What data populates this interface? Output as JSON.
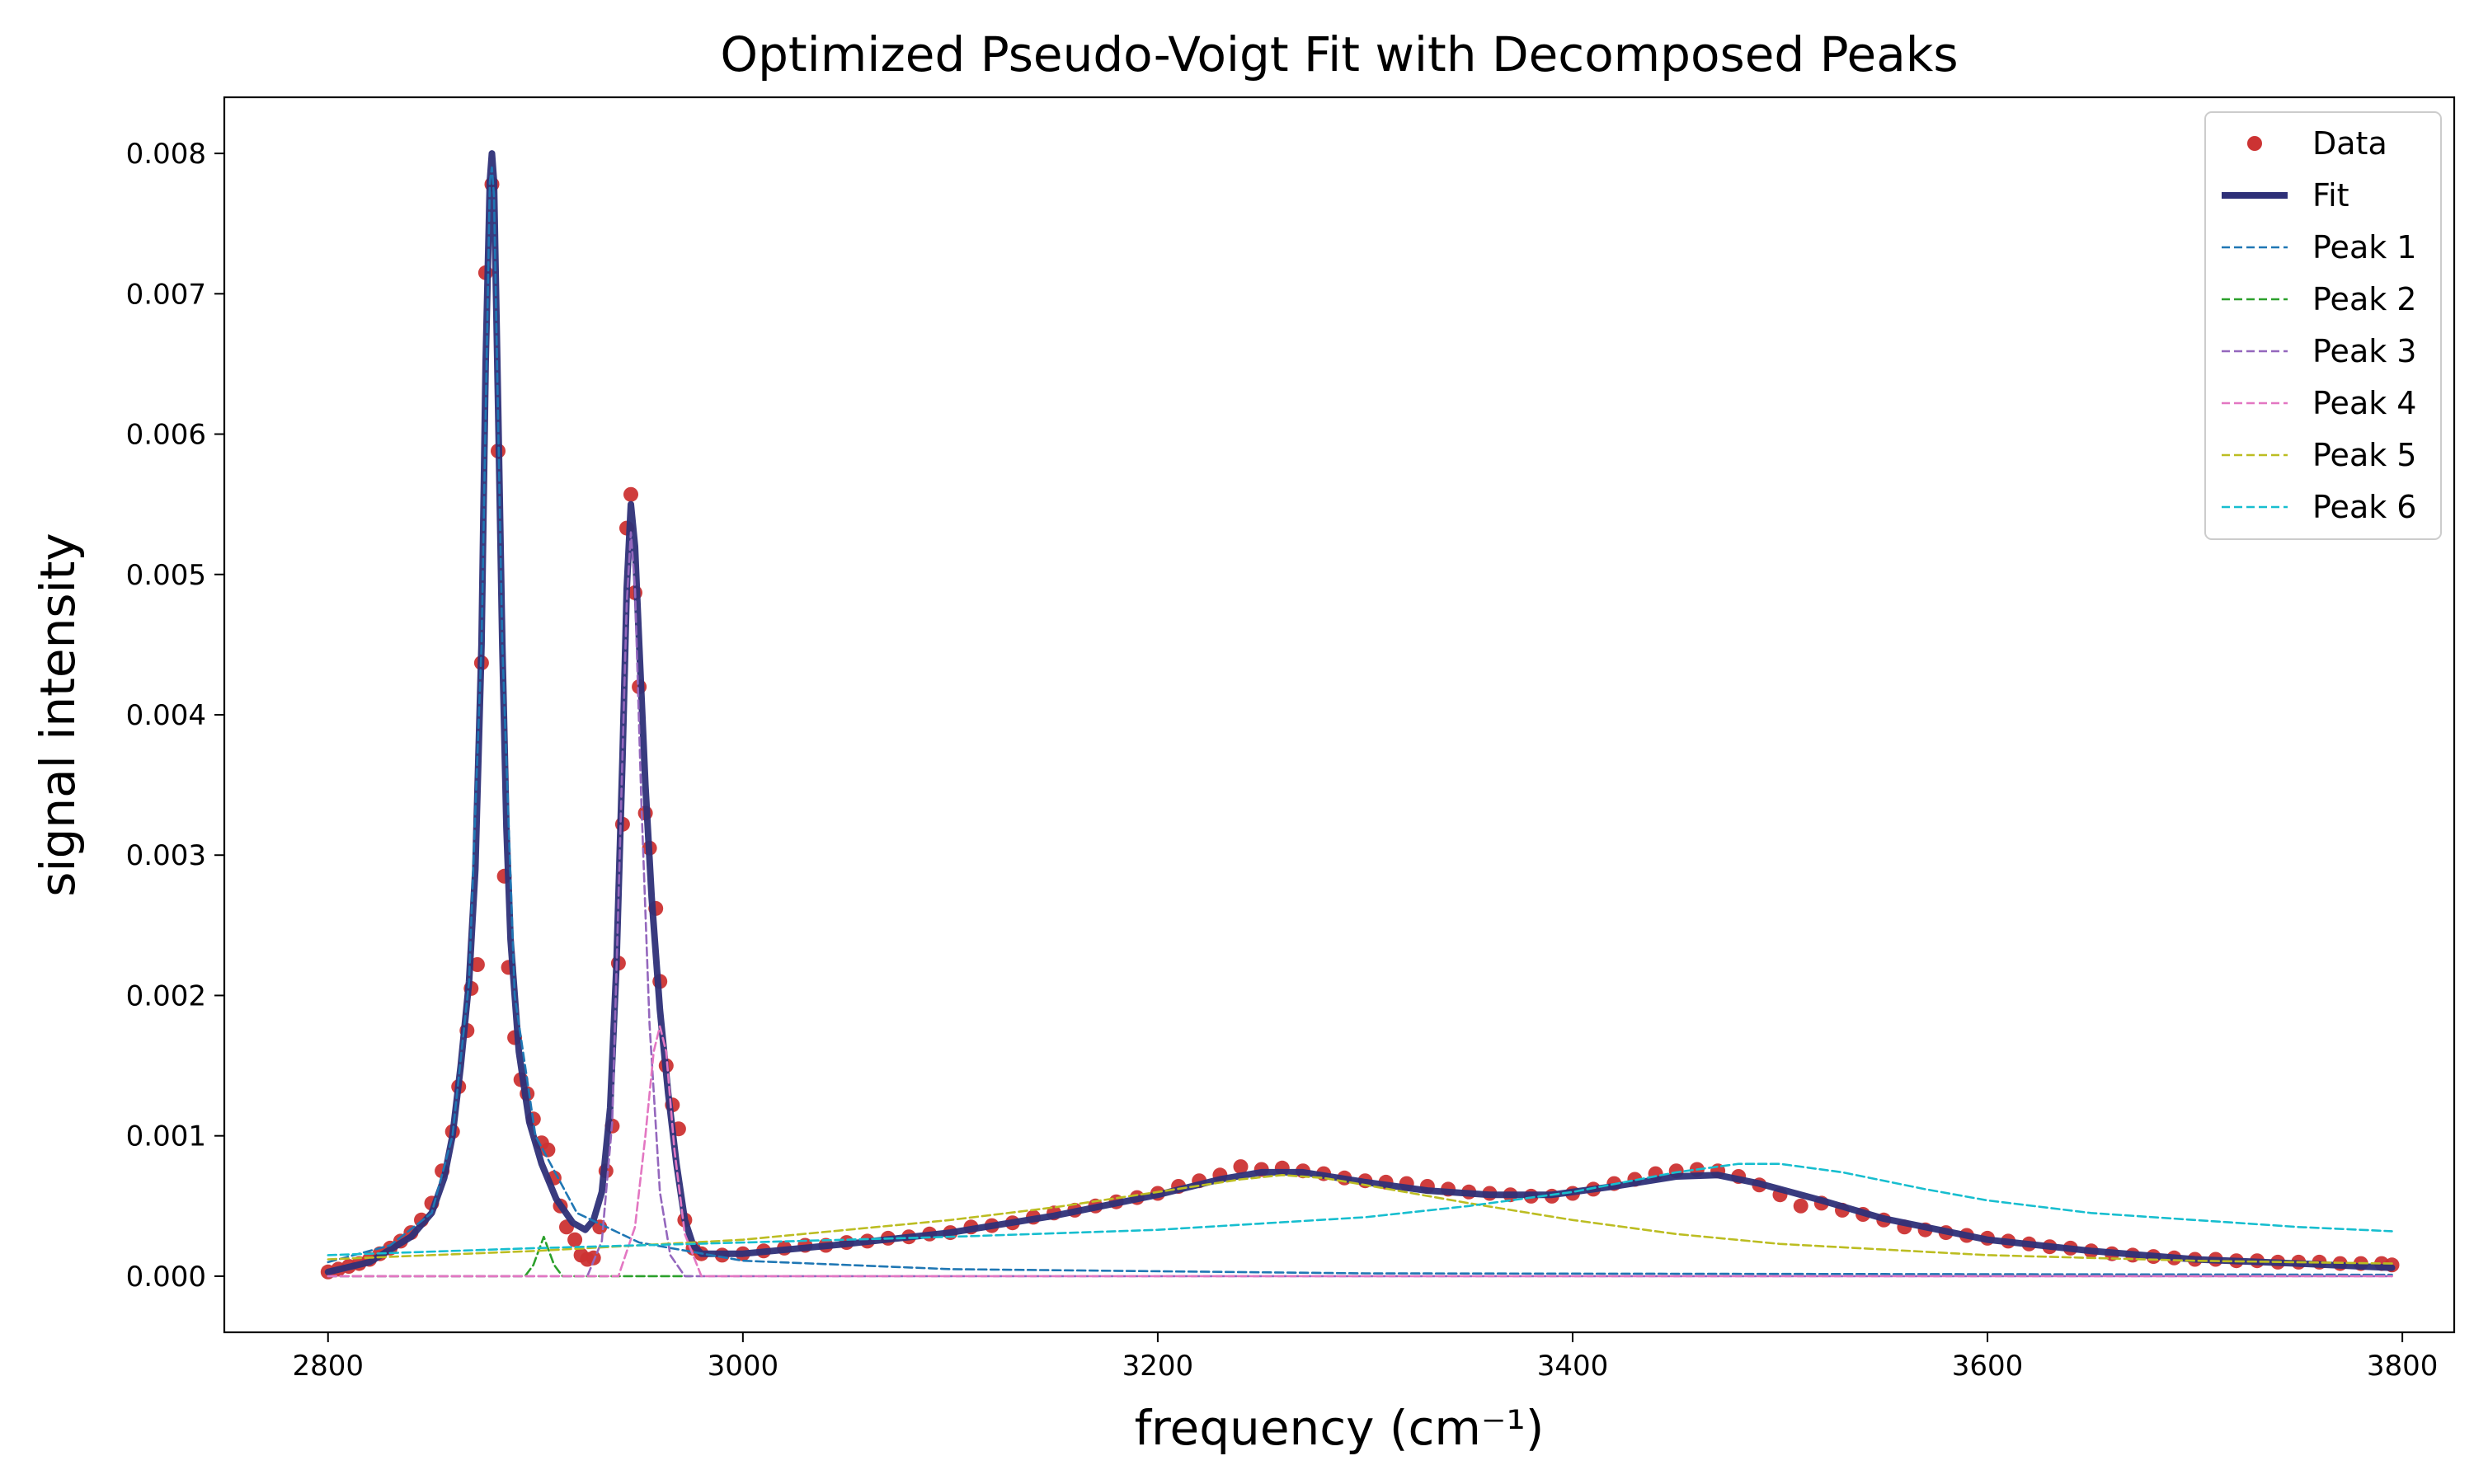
{
  "chart_data": {
    "type": "line",
    "title": "Optimized Pseudo-Voigt Fit with Decomposed Peaks",
    "xlabel": "frequency (cm⁻¹)",
    "ylabel": "signal intensity",
    "xlim": [
      2750,
      3825
    ],
    "ylim": [
      -0.0004,
      0.0084
    ],
    "x_ticks": [
      2800,
      3000,
      3200,
      3400,
      3600,
      3800
    ],
    "y_ticks": [
      0.0,
      0.001,
      0.002,
      0.003,
      0.004,
      0.005,
      0.006,
      0.007,
      0.008
    ],
    "y_tick_labels": [
      "0.000",
      "0.001",
      "0.002",
      "0.003",
      "0.004",
      "0.005",
      "0.006",
      "0.007",
      "0.008"
    ],
    "grid": false,
    "legend_position": "top-right",
    "series": [
      {
        "name": "Data",
        "kind": "scatter",
        "color": "#cc3333",
        "points": [
          [
            2800,
            3e-05
          ],
          [
            2805,
            5e-05
          ],
          [
            2810,
            7e-05
          ],
          [
            2815,
            9e-05
          ],
          [
            2820,
            0.00012
          ],
          [
            2825,
            0.00016
          ],
          [
            2830,
            0.0002
          ],
          [
            2835,
            0.00025
          ],
          [
            2840,
            0.00031
          ],
          [
            2845,
            0.0004
          ],
          [
            2850,
            0.00052
          ],
          [
            2855,
            0.00075
          ],
          [
            2860,
            0.00103
          ],
          [
            2863,
            0.00135
          ],
          [
            2867,
            0.00175
          ],
          [
            2869,
            0.00205
          ],
          [
            2872,
            0.00222
          ],
          [
            2874,
            0.00437
          ],
          [
            2876,
            0.00715
          ],
          [
            2879,
            0.00778
          ],
          [
            2882,
            0.00588
          ],
          [
            2885,
            0.00285
          ],
          [
            2887,
            0.0022
          ],
          [
            2890,
            0.0017
          ],
          [
            2893,
            0.0014
          ],
          [
            2896,
            0.0013
          ],
          [
            2899,
            0.00112
          ],
          [
            2903,
            0.00095
          ],
          [
            2906,
            0.0009
          ],
          [
            2909,
            0.0007
          ],
          [
            2912,
            0.0005
          ],
          [
            2915,
            0.00035
          ],
          [
            2919,
            0.00026
          ],
          [
            2922,
            0.00015
          ],
          [
            2925,
            0.00012
          ],
          [
            2928,
            0.00013
          ],
          [
            2931,
            0.00035
          ],
          [
            2934,
            0.00075
          ],
          [
            2937,
            0.00107
          ],
          [
            2940,
            0.00223
          ],
          [
            2942,
            0.00322
          ],
          [
            2944,
            0.00533
          ],
          [
            2946,
            0.00557
          ],
          [
            2948,
            0.00487
          ],
          [
            2950,
            0.0042
          ],
          [
            2953,
            0.0033
          ],
          [
            2955,
            0.00305
          ],
          [
            2958,
            0.00262
          ],
          [
            2960,
            0.0021
          ],
          [
            2963,
            0.0015
          ],
          [
            2966,
            0.00122
          ],
          [
            2969,
            0.00105
          ],
          [
            2972,
            0.0004
          ],
          [
            2976,
            0.0002
          ],
          [
            2980,
            0.00016
          ],
          [
            2990,
            0.00015
          ],
          [
            3000,
            0.00016
          ],
          [
            3010,
            0.00018
          ],
          [
            3020,
            0.0002
          ],
          [
            3030,
            0.00022
          ],
          [
            3040,
            0.00022
          ],
          [
            3050,
            0.00024
          ],
          [
            3060,
            0.00025
          ],
          [
            3070,
            0.00027
          ],
          [
            3080,
            0.00028
          ],
          [
            3090,
            0.0003
          ],
          [
            3100,
            0.00031
          ],
          [
            3110,
            0.00035
          ],
          [
            3120,
            0.00036
          ],
          [
            3130,
            0.00038
          ],
          [
            3140,
            0.00042
          ],
          [
            3150,
            0.00045
          ],
          [
            3160,
            0.00047
          ],
          [
            3170,
            0.0005
          ],
          [
            3180,
            0.00053
          ],
          [
            3190,
            0.00056
          ],
          [
            3200,
            0.00059
          ],
          [
            3210,
            0.00064
          ],
          [
            3220,
            0.00068
          ],
          [
            3230,
            0.00072
          ],
          [
            3240,
            0.00078
          ],
          [
            3250,
            0.00076
          ],
          [
            3260,
            0.00077
          ],
          [
            3270,
            0.00075
          ],
          [
            3280,
            0.00073
          ],
          [
            3290,
            0.0007
          ],
          [
            3300,
            0.00068
          ],
          [
            3310,
            0.00067
          ],
          [
            3320,
            0.00066
          ],
          [
            3330,
            0.00064
          ],
          [
            3340,
            0.00062
          ],
          [
            3350,
            0.0006
          ],
          [
            3360,
            0.00059
          ],
          [
            3370,
            0.00058
          ],
          [
            3380,
            0.00057
          ],
          [
            3390,
            0.00057
          ],
          [
            3400,
            0.00059
          ],
          [
            3410,
            0.00062
          ],
          [
            3420,
            0.00066
          ],
          [
            3430,
            0.00069
          ],
          [
            3440,
            0.00073
          ],
          [
            3450,
            0.00075
          ],
          [
            3460,
            0.00076
          ],
          [
            3470,
            0.00075
          ],
          [
            3480,
            0.00071
          ],
          [
            3490,
            0.00065
          ],
          [
            3500,
            0.00058
          ],
          [
            3510,
            0.0005
          ],
          [
            3520,
            0.00052
          ],
          [
            3530,
            0.00047
          ],
          [
            3540,
            0.00044
          ],
          [
            3550,
            0.0004
          ],
          [
            3560,
            0.00035
          ],
          [
            3570,
            0.00033
          ],
          [
            3580,
            0.00031
          ],
          [
            3590,
            0.00029
          ],
          [
            3600,
            0.00027
          ],
          [
            3610,
            0.00025
          ],
          [
            3620,
            0.00023
          ],
          [
            3630,
            0.00021
          ],
          [
            3640,
            0.0002
          ],
          [
            3650,
            0.00018
          ],
          [
            3660,
            0.00016
          ],
          [
            3670,
            0.00015
          ],
          [
            3680,
            0.00014
          ],
          [
            3690,
            0.00013
          ],
          [
            3700,
            0.00012
          ],
          [
            3710,
            0.00012
          ],
          [
            3720,
            0.00011
          ],
          [
            3730,
            0.00011
          ],
          [
            3740,
            0.0001
          ],
          [
            3750,
            0.0001
          ],
          [
            3760,
            0.0001
          ],
          [
            3770,
            9e-05
          ],
          [
            3780,
            9e-05
          ],
          [
            3790,
            9e-05
          ],
          [
            3795,
            8e-05
          ]
        ]
      },
      {
        "name": "Fit",
        "kind": "line",
        "color": "#2e3078",
        "points": [
          [
            2800,
            3e-05
          ],
          [
            2820,
            0.0001
          ],
          [
            2840,
            0.00028
          ],
          [
            2850,
            0.00045
          ],
          [
            2856,
            0.0007
          ],
          [
            2860,
            0.001
          ],
          [
            2864,
            0.0015
          ],
          [
            2868,
            0.0021
          ],
          [
            2871,
            0.0029
          ],
          [
            2874,
            0.0045
          ],
          [
            2876,
            0.0065
          ],
          [
            2878,
            0.0078
          ],
          [
            2879,
            0.008
          ],
          [
            2880,
            0.0078
          ],
          [
            2882,
            0.0062
          ],
          [
            2884,
            0.0045
          ],
          [
            2886,
            0.0032
          ],
          [
            2888,
            0.0024
          ],
          [
            2892,
            0.0016
          ],
          [
            2897,
            0.0011
          ],
          [
            2903,
            0.0008
          ],
          [
            2910,
            0.00055
          ],
          [
            2918,
            0.00038
          ],
          [
            2924,
            0.00033
          ],
          [
            2928,
            0.0004
          ],
          [
            2932,
            0.0006
          ],
          [
            2936,
            0.0012
          ],
          [
            2939,
            0.0022
          ],
          [
            2942,
            0.0037
          ],
          [
            2944,
            0.0049
          ],
          [
            2946,
            0.0055
          ],
          [
            2948,
            0.0052
          ],
          [
            2950,
            0.0045
          ],
          [
            2953,
            0.0035
          ],
          [
            2956,
            0.0027
          ],
          [
            2960,
            0.0019
          ],
          [
            2964,
            0.0013
          ],
          [
            2968,
            0.0008
          ],
          [
            2972,
            0.0004
          ],
          [
            2976,
            0.00022
          ],
          [
            2980,
            0.00016
          ],
          [
            3000,
            0.00016
          ],
          [
            3050,
            0.00023
          ],
          [
            3100,
            0.00031
          ],
          [
            3150,
            0.00043
          ],
          [
            3200,
            0.00058
          ],
          [
            3230,
            0.00069
          ],
          [
            3250,
            0.00074
          ],
          [
            3270,
            0.00074
          ],
          [
            3300,
            0.00067
          ],
          [
            3330,
            0.00061
          ],
          [
            3360,
            0.00058
          ],
          [
            3390,
            0.00058
          ],
          [
            3420,
            0.00064
          ],
          [
            3450,
            0.00071
          ],
          [
            3470,
            0.00072
          ],
          [
            3490,
            0.00066
          ],
          [
            3520,
            0.00054
          ],
          [
            3550,
            0.00041
          ],
          [
            3600,
            0.00026
          ],
          [
            3650,
            0.00018
          ],
          [
            3700,
            0.00012
          ],
          [
            3750,
            9e-05
          ],
          [
            3795,
            6e-05
          ]
        ]
      },
      {
        "name": "Peak 1",
        "kind": "dashed",
        "color": "#1f77b4",
        "points": [
          [
            2800,
            0.0001
          ],
          [
            2830,
            0.00022
          ],
          [
            2850,
            0.00045
          ],
          [
            2860,
            0.001
          ],
          [
            2868,
            0.0021
          ],
          [
            2874,
            0.0045
          ],
          [
            2878,
            0.0078
          ],
          [
            2879,
            0.0079
          ],
          [
            2880,
            0.0077
          ],
          [
            2884,
            0.0045
          ],
          [
            2890,
            0.002
          ],
          [
            2900,
            0.001
          ],
          [
            2920,
            0.00045
          ],
          [
            2950,
            0.00024
          ],
          [
            3000,
            0.00011
          ],
          [
            3100,
            5e-05
          ],
          [
            3300,
            2e-05
          ],
          [
            3795,
            1e-05
          ]
        ]
      },
      {
        "name": "Peak 2",
        "kind": "dashed",
        "color": "#2ca02c",
        "points": [
          [
            2800,
            0.0
          ],
          [
            2895,
            0.0
          ],
          [
            2899,
            8e-05
          ],
          [
            2902,
            0.0002
          ],
          [
            2904,
            0.00028
          ],
          [
            2906,
            0.0002
          ],
          [
            2909,
            8e-05
          ],
          [
            2913,
            0.0
          ],
          [
            2975,
            0.0
          ]
        ]
      },
      {
        "name": "Peak 3",
        "kind": "dashed",
        "color": "#9467bd",
        "points": [
          [
            2800,
            0.0
          ],
          [
            2925,
            0.0
          ],
          [
            2932,
            0.00025
          ],
          [
            2937,
            0.0011
          ],
          [
            2941,
            0.0032
          ],
          [
            2944,
            0.0048
          ],
          [
            2946,
            0.0053
          ],
          [
            2948,
            0.0049
          ],
          [
            2951,
            0.0034
          ],
          [
            2955,
            0.0018
          ],
          [
            2960,
            0.0006
          ],
          [
            2965,
            0.00015
          ],
          [
            2972,
            0.0
          ],
          [
            3795,
            0.0
          ]
        ]
      },
      {
        "name": "Peak 4",
        "kind": "dashed",
        "color": "#e377c2",
        "points": [
          [
            2800,
            0.0
          ],
          [
            2940,
            0.0
          ],
          [
            2948,
            0.00035
          ],
          [
            2953,
            0.001
          ],
          [
            2957,
            0.0016
          ],
          [
            2960,
            0.00178
          ],
          [
            2963,
            0.0016
          ],
          [
            2967,
            0.0009
          ],
          [
            2972,
            0.0003
          ],
          [
            2980,
            0.0
          ],
          [
            3795,
            0.0
          ]
        ]
      },
      {
        "name": "Peak 5",
        "kind": "dashed",
        "color": "#bcbd22",
        "points": [
          [
            2800,
            0.00012
          ],
          [
            2900,
            0.00018
          ],
          [
            3000,
            0.00026
          ],
          [
            3100,
            0.0004
          ],
          [
            3150,
            0.00049
          ],
          [
            3200,
            0.0006
          ],
          [
            3240,
            0.00069
          ],
          [
            3260,
            0.00072
          ],
          [
            3280,
            0.0007
          ],
          [
            3300,
            0.00065
          ],
          [
            3350,
            0.00052
          ],
          [
            3400,
            0.0004
          ],
          [
            3450,
            0.0003
          ],
          [
            3500,
            0.00023
          ],
          [
            3600,
            0.00015
          ],
          [
            3700,
            0.00011
          ],
          [
            3795,
            9e-05
          ]
        ]
      },
      {
        "name": "Peak 6",
        "kind": "dashed",
        "color": "#17becf",
        "points": [
          [
            2800,
            0.00015
          ],
          [
            2900,
            0.0002
          ],
          [
            3000,
            0.00024
          ],
          [
            3100,
            0.00028
          ],
          [
            3200,
            0.00033
          ],
          [
            3300,
            0.00042
          ],
          [
            3350,
            0.0005
          ],
          [
            3400,
            0.0006
          ],
          [
            3450,
            0.00074
          ],
          [
            3480,
            0.0008
          ],
          [
            3500,
            0.0008
          ],
          [
            3530,
            0.00074
          ],
          [
            3570,
            0.00062
          ],
          [
            3600,
            0.00054
          ],
          [
            3650,
            0.00045
          ],
          [
            3700,
            0.0004
          ],
          [
            3750,
            0.00035
          ],
          [
            3795,
            0.00032
          ]
        ]
      }
    ]
  }
}
